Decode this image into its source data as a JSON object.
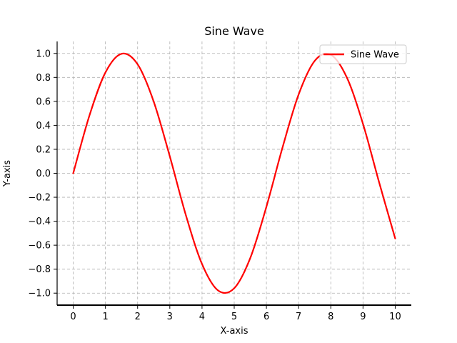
{
  "chart_data": {
    "type": "line",
    "title": "Sine Wave",
    "xlabel": "X-axis",
    "ylabel": "Y-axis",
    "xlim": [
      -0.5,
      10.5
    ],
    "ylim": [
      -1.1,
      1.1
    ],
    "xticks": [
      0,
      1,
      2,
      3,
      4,
      5,
      6,
      7,
      8,
      9,
      10
    ],
    "xtick_labels": [
      "0",
      "1",
      "2",
      "3",
      "4",
      "5",
      "6",
      "7",
      "8",
      "9",
      "10"
    ],
    "yticks": [
      -1.0,
      -0.8,
      -0.6,
      -0.4,
      -0.2,
      0.0,
      0.2,
      0.4,
      0.6,
      0.8,
      1.0
    ],
    "ytick_labels": [
      "−1.0",
      "−0.8",
      "−0.6",
      "−0.4",
      "−0.2",
      "0.0",
      "0.2",
      "0.4",
      "0.6",
      "0.8",
      "1.0"
    ],
    "grid": true,
    "legend_position": "top-right",
    "series": [
      {
        "name": "Sine Wave",
        "color": "#ff0000",
        "x": [
          0,
          0.5,
          1,
          1.5,
          2,
          2.5,
          3,
          3.5,
          4,
          4.5,
          5,
          5.5,
          6,
          6.5,
          7,
          7.5,
          8,
          8.5,
          9,
          9.5,
          10
        ],
        "y": [
          0.0,
          0.479,
          0.841,
          0.997,
          0.909,
          0.598,
          0.141,
          -0.351,
          -0.757,
          -0.978,
          -0.959,
          -0.706,
          -0.279,
          0.215,
          0.657,
          0.938,
          0.989,
          0.798,
          0.412,
          -0.075,
          -0.544
        ]
      }
    ]
  }
}
